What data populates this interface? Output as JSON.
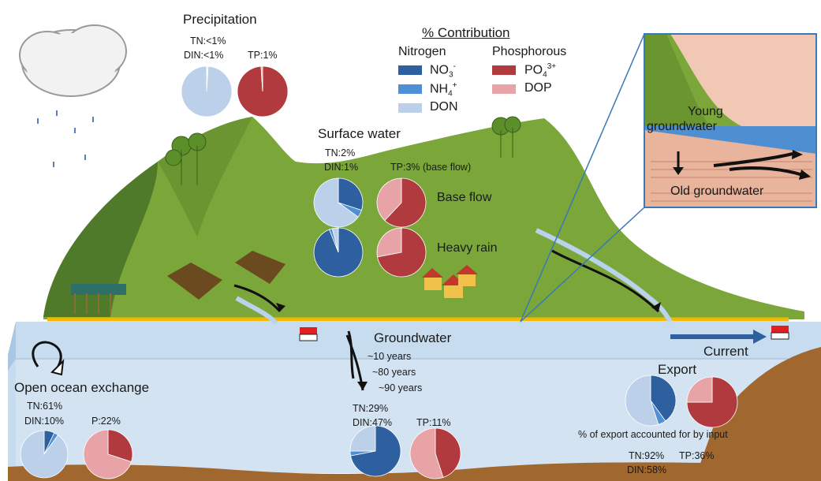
{
  "legend": {
    "title": "% Contribution",
    "nitrogen_header": "Nitrogen",
    "phosphorus_header": "Phosphorous",
    "items": [
      {
        "label": "NO3-",
        "color": "#2e5f9e"
      },
      {
        "label": "NH4+",
        "color": "#4f8fd6"
      },
      {
        "label": "DON",
        "color": "#bcd0ea"
      },
      {
        "label": "PO43+",
        "color": "#b03a3e"
      },
      {
        "label": "DOP",
        "color": "#e8a3a6"
      }
    ]
  },
  "precipitation": {
    "title": "Precipitation",
    "tn": "TN:<1%",
    "din": "DIN:<1%",
    "tp": "TP:1%",
    "n_pie": [
      0.5,
      0.5,
      99
    ],
    "p_pie": [
      99,
      1
    ]
  },
  "surface_water": {
    "title": "Surface water",
    "tn": "TN:2%",
    "din": "DIN:1%",
    "tp": "TP:3% (base flow)",
    "base_flow_label": "Base flow",
    "heavy_rain_label": "Heavy rain",
    "base_n_pie": [
      30,
      5,
      65
    ],
    "base_p_pie": [
      62,
      38
    ],
    "rain_n_pie": [
      94,
      2,
      4
    ],
    "rain_p_pie": [
      72,
      28
    ]
  },
  "groundwater": {
    "title": "Groundwater",
    "ages": [
      "~10 years",
      "~80 years",
      "~90 years"
    ],
    "tn": "TN:29%",
    "din": "DIN:47%",
    "tp": "TP:11%",
    "n_pie": [
      72,
      3,
      25
    ],
    "p_pie": [
      45,
      55
    ]
  },
  "ocean": {
    "title": "Open ocean exchange",
    "tn": "TN:61%",
    "din": "DIN:10%",
    "p": "P:22%",
    "n_pie": [
      7,
      3,
      90
    ],
    "p_pie": [
      30,
      70
    ]
  },
  "export": {
    "title": "Export",
    "current_label": "Current",
    "caption": "% of export accounted for by input",
    "tn": "TN:92%",
    "din": "DIN:58%",
    "tp": "TP:36%",
    "n_pie": [
      40,
      5,
      55
    ],
    "p_pie": [
      75,
      25
    ]
  },
  "inset": {
    "young_label": "Young groundwater",
    "old_label": "Old groundwater"
  }
}
